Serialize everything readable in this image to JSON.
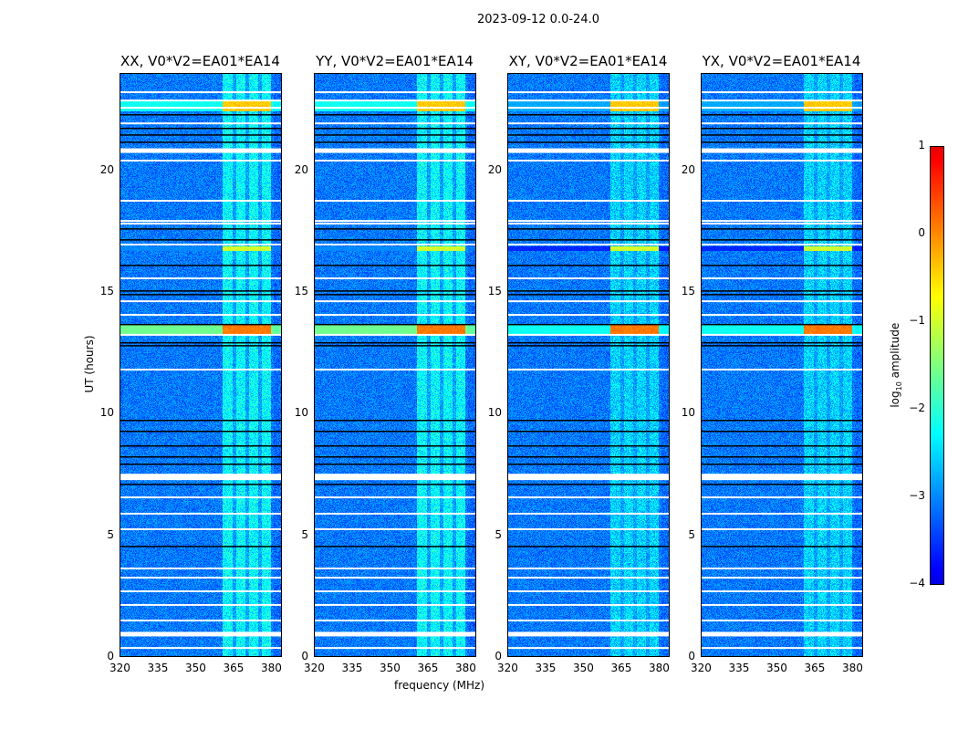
{
  "suptitle": "2023-09-12 0.0-24.0",
  "chart_data": {
    "type": "heatmap",
    "panels": [
      {
        "title": "XX, V0*V2=EA01*EA14",
        "pol": "XX"
      },
      {
        "title": "YY, V0*V2=EA01*EA14",
        "pol": "YY"
      },
      {
        "title": "XY, V0*V2=EA01*EA14",
        "pol": "XY"
      },
      {
        "title": "YX, V0*V2=EA01*EA14",
        "pol": "YX"
      }
    ],
    "xlabel": "frequency (MHz)",
    "ylabel": "UT (hours)",
    "xlim": [
      320,
      384
    ],
    "ylim": [
      0,
      24
    ],
    "xticks": [
      "320",
      "335",
      "350",
      "365",
      "380"
    ],
    "yticks": [
      "0",
      "5",
      "10",
      "15",
      "20"
    ],
    "colorbar": {
      "label": "log10 amplitude",
      "label_main": "log",
      "label_sub": "10",
      "label_rest": " amplitude",
      "range": [
        -4,
        1
      ],
      "ticks": [
        "−4",
        "−3",
        "−2",
        "−1",
        "0",
        "1"
      ]
    },
    "background_level": -3.1,
    "rfi_band_mhz": [
      360.7,
      380
    ],
    "band_gaps_mhz": [
      365.5,
      370.5,
      375.5
    ],
    "flagged_hours_white": [
      23.21,
      22.87,
      22.57,
      21.93,
      20.81,
      20.4,
      18.75,
      17.92,
      17.81,
      16.95,
      15.56,
      14.62,
      14.06,
      13.24,
      11.81,
      7.4,
      6.56,
      5.89,
      5.25,
      3.64,
      3.26,
      2.7,
      2.14,
      1.5,
      0.94,
      0.37
    ],
    "flagged_hours_black": [
      22.31,
      21.75,
      21.48,
      21.18,
      17.62,
      17.17,
      16.12,
      15.07,
      14.92,
      13.69,
      12.94,
      12.82,
      9.75,
      9.3,
      8.7,
      8.25,
      7.95,
      7.12,
      4.57
    ],
    "events": [
      {
        "hours": [
          13.3,
          13.7
        ],
        "band_level": 0.1,
        "broad_level": -1.6
      },
      {
        "hours": [
          22.45,
          22.85
        ],
        "band_level": -0.4,
        "broad_level": -2.2
      },
      {
        "hours": [
          16.7,
          16.9
        ],
        "band_level": -1.0,
        "broad_level": -3.0
      }
    ]
  }
}
